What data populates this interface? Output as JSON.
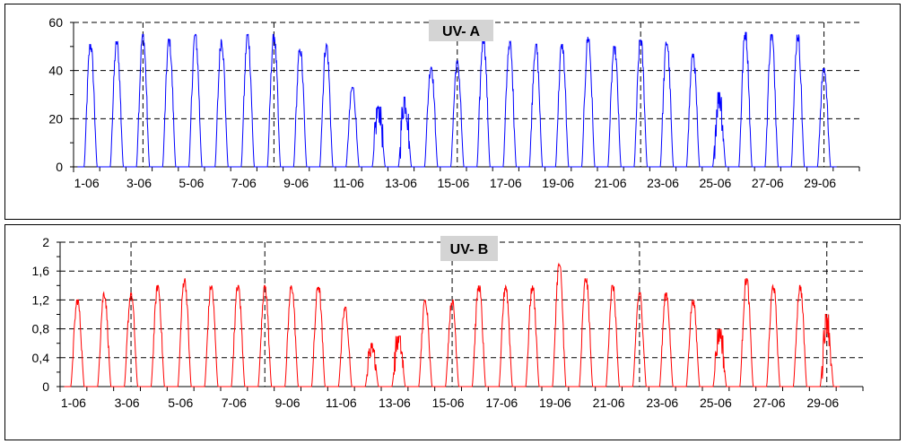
{
  "chart_data": [
    {
      "type": "line",
      "title": "UV- A",
      "xlabel": "",
      "ylabel": "",
      "color": "#0000ff",
      "x_tick_labels": [
        "1-06",
        "3-06",
        "5-06",
        "7-06",
        "9-06",
        "11-06",
        "13-06",
        "15-06",
        "17-06",
        "19-06",
        "21-06",
        "23-06",
        "25-06",
        "27-06",
        "29-06"
      ],
      "ylim": [
        0,
        60
      ],
      "y_tick_labels": [
        "0",
        "20",
        "40",
        "60"
      ],
      "grid": "dashed",
      "series": [
        {
          "daily_peaks": [
            51,
            52,
            55,
            53,
            55,
            53,
            55,
            55,
            49,
            51,
            33,
            25,
            29,
            42,
            44,
            54,
            52,
            51,
            51,
            54,
            50,
            53,
            52,
            47,
            31,
            56,
            55,
            55,
            41
          ]
        }
      ]
    },
    {
      "type": "line",
      "title": "UV- B",
      "xlabel": "",
      "ylabel": "",
      "color": "#ff0000",
      "x_tick_labels": [
        "1-06",
        "3-06",
        "5-06",
        "7-06",
        "9-06",
        "11-06",
        "13-06",
        "15-06",
        "17-06",
        "19-06",
        "21-06",
        "23-06",
        "25-06",
        "27-06",
        "29-06"
      ],
      "ylim": [
        0,
        2
      ],
      "y_tick_labels": [
        "0",
        "0,4",
        "0,8",
        "1,2",
        "1,6",
        "2"
      ],
      "grid": "dashed",
      "series": [
        {
          "daily_peaks": [
            1.2,
            1.3,
            1.3,
            1.4,
            1.5,
            1.4,
            1.4,
            1.4,
            1.4,
            1.4,
            1.1,
            0.6,
            0.7,
            1.2,
            1.2,
            1.4,
            1.4,
            1.4,
            1.7,
            1.5,
            1.4,
            1.3,
            1.3,
            1.2,
            0.8,
            1.5,
            1.4,
            1.4,
            1.0
          ]
        }
      ]
    }
  ]
}
